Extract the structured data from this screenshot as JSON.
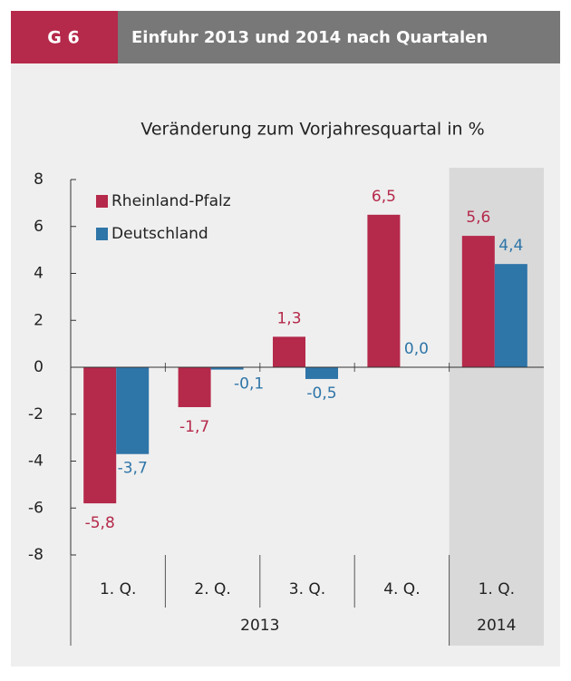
{
  "chart_data": {
    "type": "bar",
    "label": "G 6",
    "title": "Einfuhr 2013 und 2014 nach Quartalen",
    "subtitle": "Veränderung zum Vorjahresquartal in %",
    "groups": [
      {
        "name": "2013",
        "categories": [
          "1. Q.",
          "2. Q.",
          "3. Q.",
          "4. Q."
        ]
      },
      {
        "name": "2014",
        "categories": [
          "1. Q."
        ]
      }
    ],
    "series": [
      {
        "name": "Rheinland-Pfalz",
        "color": "#b5294a",
        "values": [
          -5.8,
          -1.7,
          1.3,
          6.5,
          5.6
        ],
        "value_labels": [
          "-5,8",
          "-1,7",
          "1,3",
          "6,5",
          "5,6"
        ]
      },
      {
        "name": "Deutschland",
        "color": "#2e75a8",
        "values": [
          -3.7,
          -0.1,
          -0.5,
          0.0,
          4.4
        ],
        "value_labels": [
          "-3,7",
          "-0,1",
          "-0,5",
          "0,0",
          "4,4"
        ]
      }
    ],
    "ylim": [
      -8,
      8
    ],
    "yticks": [
      -8,
      -6,
      -4,
      -2,
      0,
      2,
      4,
      6,
      8
    ],
    "legend": "top-left"
  }
}
